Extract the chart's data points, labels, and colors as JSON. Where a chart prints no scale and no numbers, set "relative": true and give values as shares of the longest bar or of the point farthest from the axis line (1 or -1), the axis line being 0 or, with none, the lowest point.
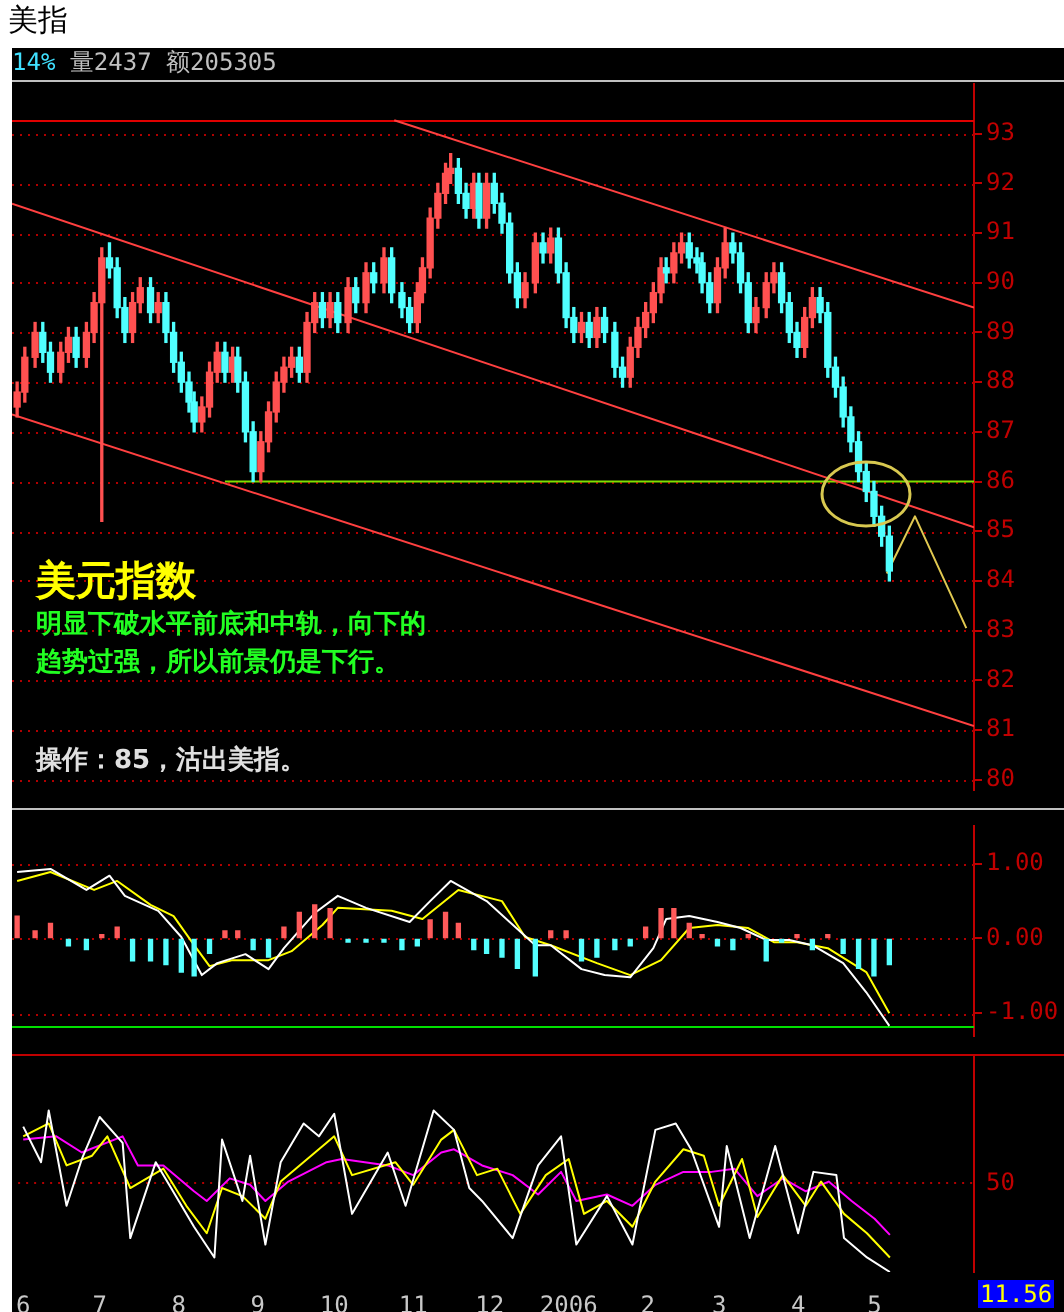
{
  "chart_data": [
    {
      "type": "candlestick",
      "title": "美指",
      "subtitle": "14% 量2437 额205305",
      "annotations": [
        "美元指数",
        "明显下破水平前底和中轨，向下的",
        "趋势过强，所以前景仍是下行。",
        "操作：85，沽出美指。"
      ],
      "x": [
        "2005-06-01",
        "2005-06-04",
        "2005-06-08",
        "2005-06-11",
        "2005-06-14",
        "2005-06-18",
        "2005-06-21",
        "2005-06-24",
        "2005-06-28",
        "2005-07-01",
        "2005-07-04",
        "2005-07-07",
        "2005-07-10",
        "2005-07-13",
        "2005-07-16",
        "2005-07-19",
        "2005-07-23",
        "2005-07-26",
        "2005-07-29",
        "2005-08-01",
        "2005-08-04",
        "2005-08-07",
        "2005-08-09",
        "2005-08-12",
        "2005-08-15",
        "2005-08-18",
        "2005-08-21",
        "2005-08-24",
        "2005-08-26",
        "2005-08-29",
        "2005-09-01",
        "2005-09-04",
        "2005-09-07",
        "2005-09-10",
        "2005-09-13",
        "2005-09-16",
        "2005-09-19",
        "2005-09-22",
        "2005-09-25",
        "2005-09-28",
        "2005-10-01",
        "2005-10-04",
        "2005-10-08",
        "2005-10-11",
        "2005-10-15",
        "2005-10-18",
        "2005-10-22",
        "2005-10-25",
        "2005-10-29",
        "2005-11-01",
        "2005-11-04",
        "2005-11-06",
        "2005-11-09",
        "2005-11-12",
        "2005-11-15",
        "2005-11-17",
        "2005-11-20",
        "2005-11-23",
        "2005-11-26",
        "2005-11-28",
        "2005-12-01",
        "2005-12-04",
        "2005-12-07",
        "2005-12-10",
        "2005-12-13",
        "2005-12-16",
        "2005-12-20",
        "2005-12-23",
        "2005-12-26",
        "2005-12-29",
        "2006-01-01",
        "2006-01-04",
        "2006-01-07",
        "2006-01-10",
        "2006-01-13",
        "2006-01-16",
        "2006-01-20",
        "2006-01-23",
        "2006-01-26",
        "2006-01-29",
        "2006-02-01",
        "2006-02-04",
        "2006-02-07",
        "2006-02-09",
        "2006-02-12",
        "2006-02-15",
        "2006-02-18",
        "2006-02-21",
        "2006-02-23",
        "2006-02-26",
        "2006-03-01",
        "2006-03-04",
        "2006-03-07",
        "2006-03-10",
        "2006-03-13",
        "2006-03-16",
        "2006-03-20",
        "2006-03-23",
        "2006-03-26",
        "2006-03-29",
        "2006-04-01",
        "2006-04-04",
        "2006-04-07",
        "2006-04-10",
        "2006-04-13",
        "2006-04-16",
        "2006-04-19",
        "2006-04-22",
        "2006-04-25",
        "2006-04-28",
        "2006-05-01",
        "2006-05-04",
        "2006-05-07"
      ],
      "ohlc": [
        [
          87.5,
          88.0,
          87.3,
          87.8
        ],
        [
          87.8,
          88.7,
          87.6,
          88.5
        ],
        [
          88.5,
          89.2,
          88.3,
          89.0
        ],
        [
          89.0,
          89.2,
          88.4,
          88.6
        ],
        [
          88.6,
          88.8,
          88.0,
          88.2
        ],
        [
          88.2,
          88.8,
          88.0,
          88.6
        ],
        [
          88.6,
          89.1,
          88.4,
          88.9
        ],
        [
          88.9,
          89.1,
          88.3,
          88.5
        ],
        [
          88.5,
          89.2,
          88.3,
          89.0
        ],
        [
          89.0,
          89.8,
          88.8,
          89.6
        ],
        [
          89.6,
          90.7,
          85.2,
          90.5
        ],
        [
          90.5,
          90.8,
          90.1,
          90.3
        ],
        [
          90.3,
          90.5,
          89.3,
          89.5
        ],
        [
          89.5,
          89.7,
          88.8,
          89.0
        ],
        [
          89.0,
          89.8,
          88.8,
          89.6
        ],
        [
          89.6,
          90.1,
          89.4,
          89.9
        ],
        [
          89.9,
          90.1,
          89.2,
          89.4
        ],
        [
          89.4,
          89.8,
          89.2,
          89.6
        ],
        [
          89.6,
          89.8,
          88.8,
          89.0
        ],
        [
          89.0,
          89.2,
          88.2,
          88.4
        ],
        [
          88.4,
          88.6,
          87.8,
          88.0
        ],
        [
          88.0,
          88.2,
          87.4,
          87.6
        ],
        [
          87.6,
          87.8,
          87.0,
          87.2
        ],
        [
          87.2,
          87.7,
          87.0,
          87.5
        ],
        [
          87.5,
          88.4,
          87.3,
          88.2
        ],
        [
          88.2,
          88.8,
          88.0,
          88.6
        ],
        [
          88.6,
          88.8,
          88.0,
          88.2
        ],
        [
          88.2,
          88.7,
          88.0,
          88.5
        ],
        [
          88.5,
          88.7,
          87.8,
          88.0
        ],
        [
          88.0,
          88.2,
          86.8,
          87.0
        ],
        [
          87.0,
          87.2,
          86.0,
          86.2
        ],
        [
          86.2,
          87.0,
          86.0,
          86.8
        ],
        [
          86.8,
          87.6,
          86.6,
          87.4
        ],
        [
          87.4,
          88.2,
          87.2,
          88.0
        ],
        [
          88.0,
          88.5,
          87.8,
          88.3
        ],
        [
          88.3,
          88.7,
          88.1,
          88.5
        ],
        [
          88.5,
          88.7,
          88.0,
          88.2
        ],
        [
          88.2,
          89.4,
          88.0,
          89.2
        ],
        [
          89.2,
          89.8,
          89.0,
          89.6
        ],
        [
          89.6,
          89.8,
          89.1,
          89.3
        ],
        [
          89.3,
          89.8,
          89.1,
          89.6
        ],
        [
          89.6,
          89.8,
          89.0,
          89.2
        ],
        [
          89.2,
          90.1,
          89.0,
          89.9
        ],
        [
          89.9,
          90.1,
          89.4,
          89.6
        ],
        [
          89.6,
          90.4,
          89.4,
          90.2
        ],
        [
          90.2,
          90.4,
          89.8,
          90.0
        ],
        [
          90.0,
          90.7,
          89.8,
          90.5
        ],
        [
          90.5,
          90.7,
          89.6,
          89.8
        ],
        [
          89.8,
          90.0,
          89.3,
          89.5
        ],
        [
          89.5,
          89.7,
          89.0,
          89.2
        ],
        [
          89.2,
          90.0,
          89.0,
          89.8
        ],
        [
          89.8,
          90.5,
          89.6,
          90.3
        ],
        [
          90.3,
          91.5,
          90.1,
          91.3
        ],
        [
          91.3,
          92.0,
          91.1,
          91.8
        ],
        [
          91.8,
          92.4,
          91.6,
          92.2
        ],
        [
          92.2,
          92.6,
          92.0,
          92.3
        ],
        [
          92.3,
          92.5,
          91.6,
          91.8
        ],
        [
          91.8,
          92.0,
          91.3,
          91.5
        ],
        [
          91.5,
          92.2,
          91.3,
          92.0
        ],
        [
          92.0,
          92.2,
          91.1,
          91.3
        ],
        [
          91.3,
          92.2,
          91.1,
          92.0
        ],
        [
          92.0,
          92.2,
          91.4,
          91.6
        ],
        [
          91.6,
          91.8,
          91.0,
          91.2
        ],
        [
          91.2,
          91.4,
          90.0,
          90.2
        ],
        [
          90.2,
          90.4,
          89.5,
          89.7
        ],
        [
          89.7,
          90.2,
          89.5,
          90.0
        ],
        [
          90.0,
          91.0,
          89.8,
          90.8
        ],
        [
          90.8,
          91.0,
          90.4,
          90.6
        ],
        [
          90.6,
          91.1,
          90.4,
          90.9
        ],
        [
          90.9,
          91.1,
          90.0,
          90.2
        ],
        [
          90.2,
          90.4,
          89.1,
          89.3
        ],
        [
          89.3,
          89.5,
          88.8,
          89.0
        ],
        [
          89.0,
          89.4,
          88.8,
          89.2
        ],
        [
          89.2,
          89.4,
          88.7,
          88.9
        ],
        [
          88.9,
          89.5,
          88.7,
          89.3
        ],
        [
          89.3,
          89.5,
          88.8,
          89.0
        ],
        [
          89.0,
          89.2,
          88.1,
          88.3
        ],
        [
          88.3,
          88.5,
          87.9,
          88.1
        ],
        [
          88.1,
          88.9,
          87.9,
          88.7
        ],
        [
          88.7,
          89.3,
          88.5,
          89.1
        ],
        [
          89.1,
          89.6,
          88.9,
          89.4
        ],
        [
          89.4,
          90.0,
          89.2,
          89.8
        ],
        [
          89.8,
          90.5,
          89.6,
          90.3
        ],
        [
          90.3,
          90.5,
          90.0,
          90.2
        ],
        [
          90.2,
          90.8,
          90.0,
          90.6
        ],
        [
          90.6,
          91.0,
          90.4,
          90.8
        ],
        [
          90.8,
          91.0,
          90.3,
          90.5
        ],
        [
          90.5,
          90.7,
          90.2,
          90.4
        ],
        [
          90.4,
          90.6,
          89.8,
          90.0
        ],
        [
          90.0,
          90.2,
          89.4,
          89.6
        ],
        [
          89.6,
          90.5,
          89.4,
          90.3
        ],
        [
          90.3,
          91.1,
          90.1,
          90.8
        ],
        [
          90.8,
          91.0,
          90.4,
          90.6
        ],
        [
          90.6,
          90.8,
          89.8,
          90.0
        ],
        [
          90.0,
          90.2,
          89.0,
          89.2
        ],
        [
          89.2,
          89.7,
          89.0,
          89.5
        ],
        [
          89.5,
          90.2,
          89.3,
          90.0
        ],
        [
          90.0,
          90.4,
          89.8,
          90.2
        ],
        [
          90.2,
          90.4,
          89.4,
          89.6
        ],
        [
          89.6,
          89.8,
          88.8,
          89.0
        ],
        [
          89.0,
          89.2,
          88.5,
          88.7
        ],
        [
          88.7,
          89.5,
          88.5,
          89.3
        ],
        [
          89.3,
          89.9,
          89.1,
          89.7
        ],
        [
          89.7,
          89.9,
          89.2,
          89.4
        ],
        [
          89.4,
          89.6,
          88.1,
          88.3
        ],
        [
          88.3,
          88.5,
          87.7,
          87.9
        ],
        [
          87.9,
          88.1,
          87.1,
          87.3
        ],
        [
          87.3,
          87.5,
          86.6,
          86.8
        ],
        [
          86.8,
          87.0,
          86.0,
          86.2
        ],
        [
          86.2,
          86.4,
          85.6,
          85.8
        ],
        [
          85.8,
          86.0,
          85.1,
          85.3
        ],
        [
          85.3,
          85.5,
          84.7,
          84.9
        ],
        [
          84.9,
          85.1,
          84.0,
          84.2
        ]
      ],
      "colors": [
        "#ff5050",
        "#ff5050",
        "#ff5050",
        "#50ffff",
        "#50ffff",
        "#ff5050",
        "#ff5050",
        "#50ffff",
        "#ff5050",
        "#ff5050",
        "#ff5050",
        "#50ffff",
        "#50ffff",
        "#50ffff",
        "#ff5050",
        "#ff5050",
        "#50ffff",
        "#ff5050",
        "#50ffff",
        "#50ffff",
        "#50ffff",
        "#50ffff",
        "#50ffff",
        "#ff5050",
        "#ff5050",
        "#ff5050",
        "#50ffff",
        "#ff5050",
        "#50ffff",
        "#50ffff",
        "#50ffff",
        "#ff5050",
        "#ff5050",
        "#ff5050",
        "#ff5050",
        "#ff5050",
        "#50ffff",
        "#ff5050",
        "#ff5050",
        "#50ffff",
        "#ff5050",
        "#50ffff",
        "#ff5050",
        "#50ffff",
        "#ff5050",
        "#50ffff",
        "#ff5050",
        "#50ffff",
        "#50ffff",
        "#50ffff",
        "#ff5050",
        "#ff5050",
        "#ff5050",
        "#ff5050",
        "#ff5050",
        "#ff5050",
        "#50ffff",
        "#50ffff",
        "#ff5050",
        "#50ffff",
        "#ff5050",
        "#50ffff",
        "#50ffff",
        "#50ffff",
        "#50ffff",
        "#ff5050",
        "#ff5050",
        "#50ffff",
        "#ff5050",
        "#50ffff",
        "#50ffff",
        "#50ffff",
        "#ff5050",
        "#50ffff",
        "#ff5050",
        "#50ffff",
        "#50ffff",
        "#50ffff",
        "#ff5050",
        "#ff5050",
        "#ff5050",
        "#ff5050",
        "#ff5050",
        "#50ffff",
        "#ff5050",
        "#ff5050",
        "#50ffff",
        "#50ffff",
        "#50ffff",
        "#50ffff",
        "#ff5050",
        "#ff5050",
        "#50ffff",
        "#50ffff",
        "#50ffff",
        "#ff5050",
        "#ff5050",
        "#ff5050",
        "#50ffff",
        "#50ffff",
        "#50ffff",
        "#ff5050",
        "#ff5050",
        "#50ffff",
        "#50ffff",
        "#50ffff",
        "#50ffff",
        "#50ffff",
        "#50ffff",
        "#50ffff",
        "#50ffff",
        "#50ffff",
        "#50ffff"
      ],
      "series": [
        {
          "type": "line",
          "color": "#ff4040",
          "x": [
            "2005-10-26",
            "2006-06-09"
          ],
          "values": [
            93.27,
            89.5
          ]
        },
        {
          "type": "line",
          "color": "#ff4040",
          "x": [
            "2005-05-30",
            "2006-06-09"
          ],
          "values": [
            91.59,
            85.08
          ]
        },
        {
          "type": "line",
          "color": "#ff4040",
          "x": [
            "2005-05-30",
            "2006-06-09"
          ],
          "values": [
            87.35,
            81.08
          ]
        },
        {
          "type": "line",
          "color": "#80e000",
          "x": [
            "2005-08-21",
            "2006-06-09"
          ],
          "values": [
            86,
            86
          ]
        },
        {
          "type": "line",
          "color": "#e0c850",
          "x": [
            "2006-05-06",
            "2006-05-17",
            "2006-06-06"
          ],
          "values": [
            84.15,
            85.3,
            83.05
          ]
        }
      ],
      "ref_lines": [
        {
          "axis": "y",
          "value": 93.27,
          "color": "#e00000",
          "line_style": "solid"
        }
      ],
      "xlim": [
        "2005-05-30",
        "2006-06-09"
      ],
      "ylim": [
        79.8,
        94.0
      ],
      "yticks": [
        80,
        81,
        82,
        83,
        84,
        85,
        86,
        87,
        88,
        89,
        90,
        91,
        92,
        93
      ],
      "tick_labels": "y",
      "grid": "y"
    },
    {
      "type": "bar",
      "series": [
        {
          "type": "bar",
          "x": [
            "2005-06-01",
            "2005-06-08",
            "2005-06-14",
            "2005-06-21",
            "2005-06-28",
            "2005-07-04",
            "2005-07-10",
            "2005-07-16",
            "2005-07-23",
            "2005-07-29",
            "2005-08-04",
            "2005-08-09",
            "2005-08-15",
            "2005-08-21",
            "2005-08-26",
            "2005-09-01",
            "2005-09-07",
            "2005-09-13",
            "2005-09-19",
            "2005-09-25",
            "2005-10-01",
            "2005-10-08",
            "2005-10-15",
            "2005-10-22",
            "2005-10-29",
            "2005-11-04",
            "2005-11-09",
            "2005-11-15",
            "2005-11-20",
            "2005-11-26",
            "2005-12-01",
            "2005-12-07",
            "2005-12-13",
            "2005-12-20",
            "2005-12-26",
            "2006-01-01",
            "2006-01-07",
            "2006-01-13",
            "2006-01-20",
            "2006-01-26",
            "2006-02-01",
            "2006-02-07",
            "2006-02-12",
            "2006-02-18",
            "2006-02-23",
            "2006-03-01",
            "2006-03-07",
            "2006-03-13",
            "2006-03-20",
            "2006-03-26",
            "2006-04-01",
            "2006-04-07",
            "2006-04-13",
            "2006-04-19",
            "2006-04-25",
            "2006-05-01",
            "2006-05-07"
          ],
          "values": [
            0.3,
            0.1,
            0.2,
            -0.1,
            -0.15,
            0.05,
            0.15,
            -0.3,
            -0.3,
            -0.35,
            -0.45,
            -0.5,
            -0.2,
            0.1,
            0.1,
            -0.15,
            -0.25,
            0.15,
            0.35,
            0.45,
            0.4,
            -0.05,
            -0.05,
            -0.05,
            -0.15,
            -0.1,
            0.25,
            0.35,
            0.2,
            -0.15,
            -0.2,
            -0.25,
            -0.4,
            -0.5,
            0.1,
            0.1,
            -0.3,
            -0.25,
            -0.15,
            -0.1,
            0.15,
            0.4,
            0.4,
            0.2,
            0.05,
            -0.1,
            -0.15,
            0.05,
            -0.3,
            -0.05,
            0.05,
            -0.15,
            0.05,
            -0.2,
            -0.4,
            -0.5,
            -0.35
          ],
          "colors": [
            "#ff5a5a",
            "#ff5a5a",
            "#ff5a5a",
            "#54ffff",
            "#54ffff",
            "#ff5a5a",
            "#ff5a5a",
            "#54ffff",
            "#54ffff",
            "#54ffff",
            "#54ffff",
            "#54ffff",
            "#54ffff",
            "#ff5a5a",
            "#ff5a5a",
            "#54ffff",
            "#54ffff",
            "#ff5a5a",
            "#ff5a5a",
            "#ff5a5a",
            "#ff5a5a",
            "#54ffff",
            "#54ffff",
            "#54ffff",
            "#54ffff",
            "#54ffff",
            "#ff5a5a",
            "#ff5a5a",
            "#ff5a5a",
            "#54ffff",
            "#54ffff",
            "#54ffff",
            "#54ffff",
            "#54ffff",
            "#ff5a5a",
            "#ff5a5a",
            "#54ffff",
            "#54ffff",
            "#54ffff",
            "#54ffff",
            "#ff5a5a",
            "#ff5a5a",
            "#ff5a5a",
            "#ff5a5a",
            "#ff5a5a",
            "#54ffff",
            "#54ffff",
            "#ff5a5a",
            "#54ffff",
            "#54ffff",
            "#ff5a5a",
            "#54ffff",
            "#ff5a5a",
            "#54ffff",
            "#54ffff",
            "#54ffff",
            "#54ffff"
          ]
        },
        {
          "type": "line",
          "color": "#ffffff",
          "x": [
            "2005-06-01",
            "2005-06-14",
            "2005-06-28",
            "2005-07-07",
            "2005-07-13",
            "2005-07-26",
            "2005-08-04",
            "2005-08-12",
            "2005-08-18",
            "2005-08-29",
            "2005-09-07",
            "2005-09-13",
            "2005-09-25",
            "2005-10-04",
            "2005-10-15",
            "2005-11-01",
            "2005-11-09",
            "2005-11-17",
            "2005-12-01",
            "2005-12-10",
            "2005-12-20",
            "2005-12-26",
            "2006-01-07",
            "2006-01-16",
            "2006-01-26",
            "2006-02-04",
            "2006-02-09",
            "2006-02-18",
            "2006-03-01",
            "2006-03-10",
            "2006-03-20",
            "2006-03-29",
            "2006-04-07",
            "2006-04-19",
            "2006-04-28",
            "2006-05-07"
          ],
          "values": [
            0.89,
            0.93,
            0.65,
            0.84,
            0.57,
            0.37,
            0.02,
            -0.49,
            -0.33,
            -0.21,
            -0.41,
            -0.13,
            0.34,
            0.57,
            0.41,
            0.22,
            0.5,
            0.77,
            0.5,
            0.22,
            -0.09,
            -0.09,
            -0.41,
            -0.49,
            -0.52,
            -0.13,
            0.26,
            0.3,
            0.22,
            0.14,
            -0.02,
            -0.02,
            -0.09,
            -0.33,
            -0.72,
            -1.17
          ]
        },
        {
          "type": "line",
          "color": "#ffff00",
          "x": [
            "2005-06-01",
            "2005-06-14",
            "2005-07-01",
            "2005-07-10",
            "2005-07-23",
            "2005-08-01",
            "2005-08-09",
            "2005-08-15",
            "2005-08-24",
            "2005-09-07",
            "2005-09-16",
            "2005-09-28",
            "2005-10-04",
            "2005-10-25",
            "2005-11-06",
            "2005-11-20",
            "2005-12-07",
            "2005-12-16",
            "2005-12-26",
            "2006-01-13",
            "2006-01-26",
            "2006-02-07",
            "2006-02-18",
            "2006-03-01",
            "2006-03-13",
            "2006-03-23",
            "2006-04-01",
            "2006-04-13",
            "2006-04-28",
            "2006-05-07"
          ],
          "values": [
            0.77,
            0.89,
            0.65,
            0.77,
            0.45,
            0.3,
            -0.09,
            -0.37,
            -0.29,
            -0.29,
            -0.17,
            0.18,
            0.41,
            0.37,
            0.26,
            0.65,
            0.5,
            0.02,
            -0.09,
            -0.33,
            -0.49,
            -0.29,
            0.14,
            0.18,
            0.14,
            -0.05,
            -0.05,
            -0.13,
            -0.45,
            -1.0
          ]
        }
      ],
      "ref_lines": [
        {
          "axis": "y",
          "value": -1.17,
          "color": "#00e000",
          "line_style": "solid"
        }
      ],
      "xlim": [
        "2005-05-30",
        "2006-06-09"
      ],
      "ylim": [
        -1.3,
        1.5
      ],
      "yticks": [
        {
          "value": 1,
          "label": "1.00"
        },
        {
          "value": 0,
          "label": "0.00"
        },
        {
          "value": -1,
          "label": "-1.00"
        }
      ],
      "tick_labels": "y",
      "grid": "y"
    },
    {
      "type": "line",
      "relative": true,
      "annotations": [
        "50",
        "11.56"
      ],
      "series": [
        {
          "type": "line",
          "color": "#ffffff",
          "x": [
            "2005-06-01",
            "2005-06-08",
            "2005-06-11",
            "2005-06-18",
            "2005-06-24",
            "2005-07-01",
            "2005-07-10",
            "2005-07-13",
            "2005-07-23",
            "2005-07-29",
            "2005-08-07",
            "2005-08-15",
            "2005-08-18",
            "2005-08-26",
            "2005-08-29",
            "2005-09-04",
            "2005-09-10",
            "2005-09-19",
            "2005-09-25",
            "2005-10-01",
            "2005-10-08",
            "2005-10-22",
            "2005-10-29",
            "2005-11-09",
            "2005-11-17",
            "2005-11-23",
            "2005-11-28",
            "2005-12-10",
            "2005-12-20",
            "2005-12-29",
            "2006-01-04",
            "2006-01-16",
            "2006-01-26",
            "2006-02-04",
            "2006-02-12",
            "2006-02-18",
            "2006-03-01",
            "2006-03-04",
            "2006-03-13",
            "2006-03-23",
            "2006-04-01",
            "2006-04-07",
            "2006-04-16",
            "2006-04-19",
            "2006-04-28",
            "2006-05-07"
          ],
          "values": [
            0.9,
            0.68,
            1.0,
            0.41,
            0.7,
            0.96,
            0.8,
            0.21,
            0.68,
            0.52,
            0.28,
            0.09,
            0.82,
            0.44,
            0.72,
            0.17,
            0.68,
            0.92,
            0.84,
            0.98,
            0.36,
            0.74,
            0.41,
            1.0,
            0.88,
            0.52,
            0.44,
            0.21,
            0.66,
            0.84,
            0.17,
            0.47,
            0.17,
            0.88,
            0.92,
            0.76,
            0.28,
            0.78,
            0.21,
            0.78,
            0.24,
            0.62,
            0.6,
            0.21,
            0.09,
            0
          ]
        },
        {
          "type": "line",
          "color": "#ffff00",
          "x": [
            "2005-06-01",
            "2005-06-11",
            "2005-06-18",
            "2005-06-28",
            "2005-07-04",
            "2005-07-13",
            "2005-07-26",
            "2005-08-04",
            "2005-08-12",
            "2005-08-18",
            "2005-08-26",
            "2005-09-04",
            "2005-09-10",
            "2005-09-28",
            "2005-10-01",
            "2005-10-08",
            "2005-10-25",
            "2005-11-01",
            "2005-11-12",
            "2005-11-17",
            "2005-11-26",
            "2005-12-04",
            "2005-12-13",
            "2005-12-23",
            "2006-01-01",
            "2006-01-07",
            "2006-01-16",
            "2006-01-26",
            "2006-02-04",
            "2006-02-15",
            "2006-02-23",
            "2006-03-01",
            "2006-03-10",
            "2006-03-16",
            "2006-03-26",
            "2006-04-04",
            "2006-04-10",
            "2006-04-19",
            "2006-04-28",
            "2006-05-07"
          ],
          "values": [
            0.84,
            0.92,
            0.66,
            0.72,
            0.84,
            0.52,
            0.64,
            0.41,
            0.24,
            0.52,
            0.47,
            0.33,
            0.56,
            0.8,
            0.84,
            0.6,
            0.68,
            0.54,
            0.82,
            0.88,
            0.6,
            0.64,
            0.36,
            0.6,
            0.7,
            0.36,
            0.44,
            0.28,
            0.56,
            0.76,
            0.72,
            0.41,
            0.7,
            0.34,
            0.6,
            0.41,
            0.56,
            0.36,
            0.24,
            0.09
          ]
        },
        {
          "type": "line",
          "color": "#ff00ff",
          "x": [
            "2005-06-01",
            "2005-06-14",
            "2005-06-24",
            "2005-07-10",
            "2005-07-16",
            "2005-07-26",
            "2005-08-07",
            "2005-08-12",
            "2005-08-21",
            "2005-08-29",
            "2005-09-04",
            "2005-09-13",
            "2005-09-28",
            "2005-10-04",
            "2005-10-22",
            "2005-11-01",
            "2005-11-12",
            "2005-11-17",
            "2005-11-28",
            "2005-12-10",
            "2005-12-20",
            "2005-12-29",
            "2006-01-04",
            "2006-01-16",
            "2006-01-26",
            "2006-02-04",
            "2006-02-15",
            "2006-02-26",
            "2006-03-07",
            "2006-03-16",
            "2006-03-26",
            "2006-04-04",
            "2006-04-13",
            "2006-04-22",
            "2006-05-01",
            "2006-05-07"
          ],
          "values": [
            0.82,
            0.84,
            0.74,
            0.84,
            0.66,
            0.66,
            0.5,
            0.44,
            0.58,
            0.54,
            0.44,
            0.56,
            0.68,
            0.7,
            0.66,
            0.6,
            0.74,
            0.76,
            0.66,
            0.6,
            0.48,
            0.62,
            0.44,
            0.48,
            0.41,
            0.54,
            0.62,
            0.62,
            0.64,
            0.47,
            0.58,
            0.5,
            0.56,
            0.44,
            0.33,
            0.23
          ]
        }
      ],
      "ref_lines": [
        {
          "axis": "y",
          "value": 0.56,
          "color": "#b00000",
          "line_style": "dotted"
        }
      ],
      "xlim": [
        "2005-05-30",
        "2006-06-09"
      ],
      "xticks": [
        {
          "value": "2005-06-01",
          "label": "6"
        },
        {
          "value": "2005-07-01",
          "label": "7"
        },
        {
          "value": "2005-08-01",
          "label": "8"
        },
        {
          "value": "2005-09-01",
          "label": "9"
        },
        {
          "value": "2005-10-01",
          "label": "10"
        },
        {
          "value": "2005-11-01",
          "label": "11"
        },
        {
          "value": "2005-12-01",
          "label": "12"
        },
        {
          "value": "2006-01-01",
          "label": "2006"
        },
        {
          "value": "2006-02-01",
          "label": "2"
        },
        {
          "value": "2006-03-01",
          "label": "3"
        },
        {
          "value": "2006-04-01",
          "label": "4"
        },
        {
          "value": "2006-05-01",
          "label": "5"
        }
      ]
    }
  ]
}
